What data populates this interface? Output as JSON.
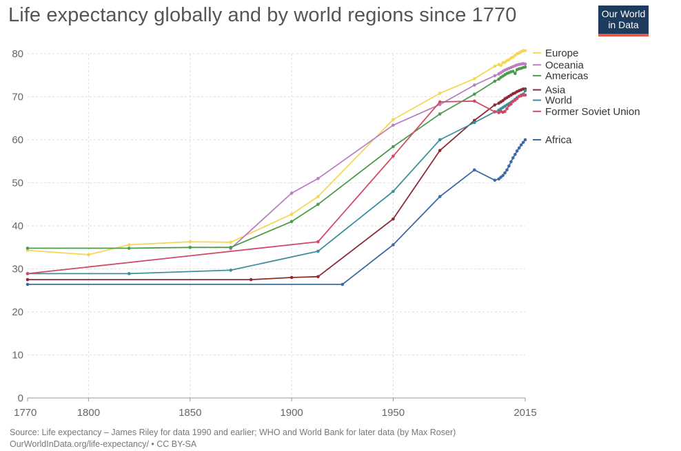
{
  "chart_data": {
    "type": "line",
    "title": "Life expectancy globally and by world regions since 1770",
    "xlim": [
      1770,
      2015
    ],
    "ylim": [
      0,
      80
    ],
    "x_ticks": [
      1770,
      1800,
      1850,
      1900,
      1950,
      2015
    ],
    "y_ticks": [
      0,
      10,
      20,
      30,
      40,
      50,
      60,
      70,
      80
    ],
    "grid": true,
    "legend_position": "right",
    "series": [
      {
        "name": "Europe",
        "color": "#f5d655",
        "legend_y": 80.2,
        "points": [
          [
            1770,
            34.3
          ],
          [
            1800,
            33.3
          ],
          [
            1820,
            35.6
          ],
          [
            1850,
            36.3
          ],
          [
            1870,
            36.2
          ],
          [
            1900,
            42.7
          ],
          [
            1913,
            46.8
          ],
          [
            1950,
            64.7
          ],
          [
            1973,
            70.8
          ],
          [
            1990,
            74.2
          ],
          [
            2000,
            77.1
          ],
          [
            2002,
            77.5
          ],
          [
            2003,
            77.3
          ],
          [
            2004,
            77.9
          ],
          [
            2005,
            78.0
          ],
          [
            2006,
            78.4
          ],
          [
            2007,
            78.6
          ],
          [
            2008,
            79.0
          ],
          [
            2009,
            79.2
          ],
          [
            2010,
            79.6
          ],
          [
            2011,
            80.0
          ],
          [
            2012,
            80.2
          ],
          [
            2013,
            80.5
          ],
          [
            2014,
            80.7
          ],
          [
            2015,
            80.7
          ]
        ]
      },
      {
        "name": "Oceania",
        "color": "#b97fc1",
        "legend_y": 77.4,
        "points": [
          [
            1870,
            34.7
          ],
          [
            1900,
            47.6
          ],
          [
            1913,
            51.0
          ],
          [
            1950,
            63.4
          ],
          [
            1973,
            68.2
          ],
          [
            1990,
            72.7
          ],
          [
            2000,
            74.9
          ],
          [
            2002,
            75.3
          ],
          [
            2003,
            75.6
          ],
          [
            2004,
            75.9
          ],
          [
            2005,
            76.2
          ],
          [
            2006,
            76.4
          ],
          [
            2007,
            76.6
          ],
          [
            2008,
            76.8
          ],
          [
            2009,
            77.0
          ],
          [
            2010,
            77.2
          ],
          [
            2011,
            77.4
          ],
          [
            2012,
            77.5
          ],
          [
            2013,
            77.6
          ],
          [
            2014,
            77.7
          ],
          [
            2015,
            77.6
          ]
        ]
      },
      {
        "name": "Americas",
        "color": "#4b9b4b",
        "legend_y": 74.9,
        "points": [
          [
            1770,
            34.8
          ],
          [
            1820,
            34.8
          ],
          [
            1850,
            35.0
          ],
          [
            1870,
            35.0
          ],
          [
            1900,
            41.0
          ],
          [
            1913,
            45.0
          ],
          [
            1950,
            58.4
          ],
          [
            1973,
            66.0
          ],
          [
            1990,
            70.6
          ],
          [
            2000,
            73.6
          ],
          [
            2002,
            74.1
          ],
          [
            2003,
            74.5
          ],
          [
            2004,
            74.8
          ],
          [
            2005,
            75.1
          ],
          [
            2006,
            75.4
          ],
          [
            2007,
            75.6
          ],
          [
            2008,
            75.8
          ],
          [
            2009,
            75.9
          ],
          [
            2010,
            75.4
          ],
          [
            2011,
            76.3
          ],
          [
            2012,
            76.5
          ],
          [
            2013,
            76.6
          ],
          [
            2014,
            76.8
          ],
          [
            2015,
            76.9
          ]
        ]
      },
      {
        "name": "Asia",
        "color": "#8c2a36",
        "legend_y": 71.6,
        "points": [
          [
            1770,
            27.5
          ],
          [
            1880,
            27.5
          ],
          [
            1900,
            28.0
          ],
          [
            1913,
            28.2
          ],
          [
            1950,
            41.6
          ],
          [
            1973,
            57.5
          ],
          [
            1990,
            64.5
          ],
          [
            2000,
            68.1
          ],
          [
            2002,
            68.5
          ],
          [
            2003,
            68.8
          ],
          [
            2004,
            69.1
          ],
          [
            2005,
            69.5
          ],
          [
            2006,
            69.8
          ],
          [
            2007,
            70.1
          ],
          [
            2008,
            70.4
          ],
          [
            2009,
            70.7
          ],
          [
            2010,
            70.9
          ],
          [
            2011,
            71.2
          ],
          [
            2012,
            71.4
          ],
          [
            2013,
            71.6
          ],
          [
            2014,
            71.8
          ],
          [
            2015,
            71.8
          ]
        ]
      },
      {
        "name": "World",
        "color": "#3b8f9d",
        "legend_y": 69.2,
        "points": [
          [
            1770,
            28.9
          ],
          [
            1820,
            28.9
          ],
          [
            1870,
            29.7
          ],
          [
            1913,
            34.1
          ],
          [
            1950,
            48.0
          ],
          [
            1973,
            60.0
          ],
          [
            1990,
            64.0
          ],
          [
            2000,
            66.5
          ],
          [
            2002,
            66.9
          ],
          [
            2003,
            67.2
          ],
          [
            2004,
            67.5
          ],
          [
            2005,
            67.8
          ],
          [
            2006,
            68.1
          ],
          [
            2007,
            68.4
          ],
          [
            2008,
            68.7
          ],
          [
            2009,
            69.0
          ],
          [
            2010,
            69.4
          ],
          [
            2011,
            69.8
          ],
          [
            2012,
            70.1
          ],
          [
            2013,
            70.4
          ],
          [
            2014,
            70.6
          ],
          [
            2015,
            71.4
          ]
        ]
      },
      {
        "name": "Former Soviet Union",
        "color": "#d04a66",
        "legend_y": 66.6,
        "points": [
          [
            1770,
            28.9
          ],
          [
            1913,
            36.3
          ],
          [
            1950,
            56.2
          ],
          [
            1973,
            68.8
          ],
          [
            1990,
            69.0
          ],
          [
            2000,
            66.5
          ],
          [
            2002,
            66.3
          ],
          [
            2003,
            66.6
          ],
          [
            2004,
            66.4
          ],
          [
            2005,
            66.6
          ],
          [
            2006,
            67.2
          ],
          [
            2007,
            68.0
          ],
          [
            2008,
            68.3
          ],
          [
            2009,
            68.9
          ],
          [
            2010,
            69.2
          ],
          [
            2011,
            69.6
          ],
          [
            2012,
            70.1
          ],
          [
            2013,
            70.2
          ],
          [
            2014,
            70.4
          ],
          [
            2015,
            70.4
          ]
        ]
      },
      {
        "name": "Africa",
        "color": "#3c6aa5",
        "legend_y": 60.0,
        "points": [
          [
            1770,
            26.4
          ],
          [
            1925,
            26.4
          ],
          [
            1950,
            35.6
          ],
          [
            1973,
            46.8
          ],
          [
            1990,
            53.0
          ],
          [
            2000,
            50.6
          ],
          [
            2002,
            50.9
          ],
          [
            2003,
            51.3
          ],
          [
            2004,
            51.7
          ],
          [
            2005,
            52.3
          ],
          [
            2006,
            53.0
          ],
          [
            2007,
            53.9
          ],
          [
            2008,
            54.9
          ],
          [
            2009,
            55.8
          ],
          [
            2010,
            56.6
          ],
          [
            2011,
            57.4
          ],
          [
            2012,
            58.1
          ],
          [
            2013,
            58.8
          ],
          [
            2014,
            59.4
          ],
          [
            2015,
            60.0
          ]
        ]
      }
    ]
  },
  "logo": {
    "line1": "Our World",
    "line2": "in Data"
  },
  "source": {
    "line1": "Source: Life expectancy – James Riley for data 1990 and earlier; WHO and World Bank for later data (by Max Roser)",
    "line2": "OurWorldInData.org/life-expectancy/ • CC BY-SA"
  }
}
